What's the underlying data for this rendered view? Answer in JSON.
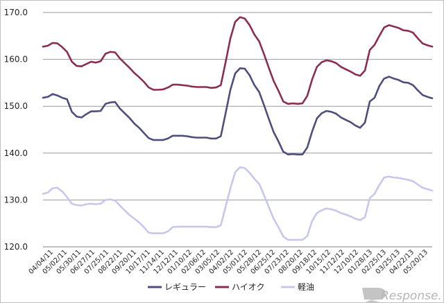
{
  "chart_data": {
    "type": "line",
    "title": "",
    "xlabel": "",
    "ylabel": "",
    "ylim": [
      120,
      170
    ],
    "y_ticks": [
      "170.0",
      "160.0",
      "150.0",
      "140.0",
      "130.0",
      "120.0"
    ],
    "grid": "horizontal",
    "legend_position": "bottom",
    "x_tick_labels": [
      "04/04/11",
      "05/02/11",
      "05/30/11",
      "06/27/11",
      "07/25/11",
      "08/22/11",
      "09/20/11",
      "10/17/11",
      "11/14/11",
      "12/12/11",
      "01/10/12",
      "02/06/12",
      "03/05/12",
      "04/02/12",
      "05/01/12",
      "05/28/12",
      "06/25/12",
      "07/23/12",
      "08/20/12",
      "09/18/12",
      "10/15/12",
      "11/12/12",
      "12/10/12",
      "01/28/13",
      "02/25/13",
      "03/25/13",
      "04/22/13",
      "05/20/13"
    ],
    "series": [
      {
        "name": "レギュラー",
        "color": "#4d4d7e",
        "values": [
          151.8,
          152.0,
          152.6,
          152.3,
          151.8,
          151.5,
          148.8,
          147.8,
          147.6,
          148.3,
          148.9,
          148.9,
          149.0,
          150.5,
          150.8,
          150.9,
          149.5,
          148.5,
          147.5,
          146.3,
          145.4,
          144.3,
          143.2,
          142.8,
          142.8,
          142.8,
          143.1,
          143.7,
          143.7,
          143.7,
          143.6,
          143.4,
          143.3,
          143.3,
          143.3,
          143.1,
          143.1,
          143.6,
          148.5,
          153.5,
          157.0,
          158.1,
          158.0,
          156.6,
          154.5,
          153.0,
          150.2,
          147.3,
          144.5,
          142.5,
          140.3,
          139.7,
          139.8,
          139.7,
          139.7,
          141.2,
          144.6,
          147.4,
          148.5,
          149.0,
          148.8,
          148.4,
          147.6,
          147.1,
          146.6,
          145.9,
          145.4,
          146.5,
          151.0,
          151.8,
          154.3,
          155.9,
          156.3,
          155.9,
          155.6,
          155.1,
          155.0,
          154.5,
          153.4,
          152.4,
          152.0,
          151.7
        ]
      },
      {
        "name": "ハイオク",
        "color": "#8b2c52",
        "values": [
          162.7,
          162.9,
          163.5,
          163.4,
          162.6,
          161.6,
          159.5,
          158.6,
          158.5,
          159.0,
          159.5,
          159.3,
          159.6,
          161.2,
          161.6,
          161.5,
          160.2,
          159.2,
          158.2,
          157.1,
          156.2,
          155.2,
          154.0,
          153.5,
          153.5,
          153.6,
          154.0,
          154.6,
          154.6,
          154.5,
          154.4,
          154.2,
          154.1,
          154.1,
          154.1,
          153.9,
          154.0,
          154.5,
          159.4,
          164.5,
          168.0,
          169.0,
          168.7,
          167.3,
          165.3,
          163.8,
          161.1,
          158.2,
          155.4,
          153.3,
          151.0,
          150.5,
          150.6,
          150.5,
          150.6,
          152.2,
          155.7,
          158.4,
          159.4,
          159.8,
          159.6,
          159.2,
          158.4,
          157.9,
          157.4,
          156.8,
          156.5,
          157.6,
          162.0,
          163.1,
          165.0,
          166.8,
          167.3,
          167.0,
          166.7,
          166.2,
          166.1,
          165.7,
          164.5,
          163.4,
          163.0,
          162.7
        ]
      },
      {
        "name": "軽油",
        "color": "#c7c7ee",
        "values": [
          131.3,
          131.6,
          132.5,
          132.6,
          131.8,
          130.6,
          129.2,
          128.9,
          128.8,
          129.1,
          129.2,
          129.1,
          129.2,
          130.0,
          130.1,
          129.9,
          128.8,
          127.8,
          126.8,
          126.0,
          125.2,
          124.2,
          123.0,
          122.9,
          122.9,
          122.9,
          123.3,
          124.2,
          124.3,
          124.3,
          124.3,
          124.3,
          124.3,
          124.3,
          124.3,
          124.2,
          124.2,
          124.6,
          128.5,
          132.5,
          135.9,
          137.0,
          136.8,
          135.8,
          134.5,
          133.4,
          131.0,
          128.5,
          126.0,
          124.2,
          122.2,
          121.5,
          121.5,
          121.5,
          121.5,
          122.3,
          125.5,
          127.2,
          127.8,
          128.2,
          128.0,
          127.7,
          127.2,
          126.9,
          126.5,
          126.0,
          125.7,
          126.3,
          130.4,
          131.3,
          133.2,
          134.8,
          135.0,
          134.8,
          134.7,
          134.5,
          134.3,
          134.0,
          133.3,
          132.6,
          132.3,
          132.0
        ]
      }
    ]
  },
  "watermark": {
    "text": "Response."
  }
}
